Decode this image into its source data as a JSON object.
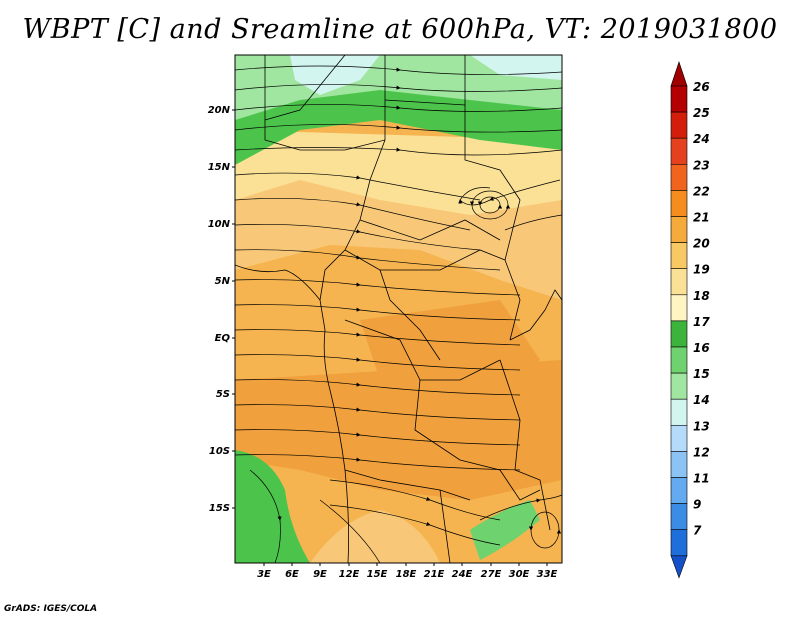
{
  "title": "WBPT [C] and Sreamline at 600hPa, VT: 2019031800",
  "credit": "GrADS: IGES/COLA",
  "lat_labels": [
    "20N",
    "15N",
    "10N",
    "5N",
    "EQ",
    "5S",
    "10S",
    "15S"
  ],
  "lon_labels": [
    "3E",
    "6E",
    "9E",
    "12E",
    "15E",
    "18E",
    "21E",
    "24E",
    "27E",
    "30E",
    "33E"
  ],
  "colorbar": {
    "labels": [
      "26",
      "25",
      "24",
      "23",
      "22",
      "21",
      "20",
      "19",
      "18",
      "17",
      "16",
      "15",
      "14",
      "13",
      "12",
      "11",
      "9",
      "7"
    ],
    "colors": [
      "#b40000",
      "#d21e0a",
      "#e6411e",
      "#f0641e",
      "#f58c1e",
      "#f5aa3c",
      "#f8c864",
      "#fae196",
      "#fff5c3",
      "#3cb43c",
      "#6ed26e",
      "#a0e6a0",
      "#d2f5f0",
      "#b4dcfa",
      "#8cc3f5",
      "#64aaf0",
      "#3c8ce6",
      "#1e6edc"
    ],
    "top_arrow_color": "#a00000",
    "bottom_arrow_color": "#1450c8"
  },
  "map_colors": {
    "orange_dark": "#f0a03c",
    "orange": "#f5b450",
    "light_orange": "#f8c878",
    "yellow": "#fae196",
    "pale_yellow": "#fff0c0",
    "green": "#4cc44c",
    "light_green": "#a0e6a0",
    "pale_cyan": "#d2f5f0"
  }
}
